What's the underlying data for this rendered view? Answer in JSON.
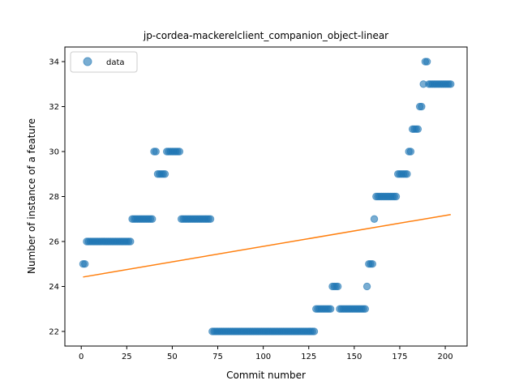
{
  "chart_data": {
    "type": "scatter",
    "title": "jp-cordea-mackerelclient_companion_object-linear",
    "xlabel": "Commit number",
    "ylabel": "Number of instance of a feature",
    "xlim": [
      -9,
      212
    ],
    "ylim": [
      21.35,
      34.65
    ],
    "xticks": [
      0,
      25,
      50,
      75,
      100,
      125,
      150,
      175,
      200
    ],
    "yticks": [
      22,
      24,
      26,
      28,
      30,
      32,
      34
    ],
    "legend": {
      "position": "top-left",
      "entries": [
        "data"
      ]
    },
    "series": [
      {
        "name": "data",
        "kind": "scatter",
        "color": "#1f77b4",
        "segments": [
          {
            "from": 1,
            "to": 2,
            "y": 25
          },
          {
            "from": 3,
            "to": 27,
            "y": 26
          },
          {
            "from": 28,
            "to": 39,
            "y": 27
          },
          {
            "from": 40,
            "to": 41,
            "y": 30
          },
          {
            "from": 42,
            "to": 46,
            "y": 29
          },
          {
            "from": 47,
            "to": 54,
            "y": 30
          },
          {
            "from": 55,
            "to": 71,
            "y": 27
          },
          {
            "from": 72,
            "to": 128,
            "y": 22
          },
          {
            "from": 129,
            "to": 137,
            "y": 23
          },
          {
            "from": 138,
            "to": 141,
            "y": 24
          },
          {
            "from": 142,
            "to": 156,
            "y": 23
          },
          {
            "from": 157,
            "to": 157,
            "y": 24
          },
          {
            "from": 158,
            "to": 160,
            "y": 25
          },
          {
            "from": 161,
            "to": 161,
            "y": 27
          },
          {
            "from": 162,
            "to": 173,
            "y": 28
          },
          {
            "from": 174,
            "to": 179,
            "y": 29
          },
          {
            "from": 180,
            "to": 181,
            "y": 30
          },
          {
            "from": 182,
            "to": 185,
            "y": 31
          },
          {
            "from": 186,
            "to": 187,
            "y": 32
          },
          {
            "from": 188,
            "to": 188,
            "y": 33
          },
          {
            "from": 189,
            "to": 190,
            "y": 34
          },
          {
            "from": 191,
            "to": 203,
            "y": 33
          }
        ]
      },
      {
        "name": "",
        "kind": "line",
        "color": "#ff7f0e",
        "x": [
          1,
          203
        ],
        "y": [
          24.42,
          27.2
        ]
      }
    ]
  }
}
